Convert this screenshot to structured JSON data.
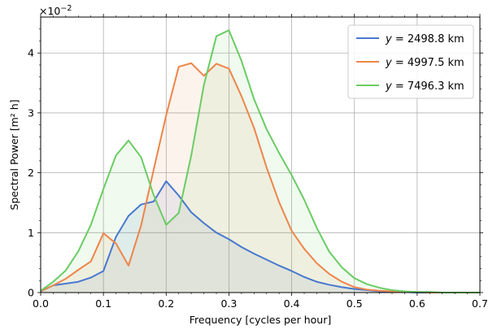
{
  "chart_data": {
    "type": "line",
    "fill_under": true,
    "x_unit_scale_label": "×10⁻²",
    "xlabel": "Frequency [cycles per hour]",
    "ylabel": "Spectral Power [m² h]",
    "xlim": [
      0,
      0.7
    ],
    "ylim": [
      0,
      4.6
    ],
    "y_multiplier_label": "×10",
    "y_multiplier_exp": "−2",
    "x_ticks": [
      0,
      0.1,
      0.2,
      0.3,
      0.4,
      0.5,
      0.6,
      0.7
    ],
    "x_tick_labels": [
      "0.0",
      "0.1",
      "0.2",
      "0.3",
      "0.4",
      "0.5",
      "0.6",
      "0.7"
    ],
    "y_ticks": [
      0,
      1,
      2,
      3,
      4
    ],
    "y_tick_labels": [
      "0",
      "1",
      "2",
      "3",
      "4"
    ],
    "grid": true,
    "legend_position": "top-right",
    "x": [
      0,
      0.02,
      0.04,
      0.06,
      0.08,
      0.1,
      0.12,
      0.14,
      0.16,
      0.18,
      0.2,
      0.22,
      0.24,
      0.26,
      0.28,
      0.3,
      0.32,
      0.34,
      0.36,
      0.38,
      0.4,
      0.42,
      0.44,
      0.46,
      0.48,
      0.5,
      0.52,
      0.54,
      0.56,
      0.58,
      0.6,
      0.62,
      0.64,
      0.66,
      0.68,
      0.7
    ],
    "series": [
      {
        "name": "y = 2498.8 km",
        "legend_var": "y",
        "legend_eq": " = 2498.8 km",
        "color": "#4878d0",
        "values": [
          0.02,
          0.12,
          0.15,
          0.18,
          0.25,
          0.36,
          0.93,
          1.28,
          1.47,
          1.52,
          1.86,
          1.62,
          1.34,
          1.16,
          1.0,
          0.89,
          0.76,
          0.65,
          0.55,
          0.45,
          0.36,
          0.26,
          0.18,
          0.13,
          0.09,
          0.06,
          0.04,
          0.02,
          0.01,
          0.01,
          0.0,
          0.0,
          0.0,
          0.0,
          0.0,
          0.0
        ]
      },
      {
        "name": "y = 4997.5 km",
        "legend_var": "y",
        "legend_eq": " = 4997.5 km",
        "color": "#ee854a",
        "values": [
          0.02,
          0.12,
          0.23,
          0.38,
          0.52,
          0.99,
          0.82,
          0.45,
          1.12,
          2.05,
          2.96,
          3.77,
          3.83,
          3.62,
          3.82,
          3.74,
          3.28,
          2.75,
          2.09,
          1.51,
          1.03,
          0.73,
          0.49,
          0.31,
          0.18,
          0.09,
          0.05,
          0.03,
          0.02,
          0.01,
          0.01,
          0.0,
          0.0,
          0.0,
          0.0,
          0.0
        ]
      },
      {
        "name": "y = 7496.3 km",
        "legend_var": "y",
        "legend_eq": " = 7496.3 km",
        "color": "#6acc64",
        "values": [
          0.03,
          0.18,
          0.37,
          0.69,
          1.13,
          1.73,
          2.29,
          2.54,
          2.26,
          1.63,
          1.13,
          1.33,
          2.29,
          3.46,
          4.28,
          4.38,
          3.87,
          3.23,
          2.73,
          2.33,
          1.96,
          1.55,
          1.08,
          0.68,
          0.42,
          0.24,
          0.14,
          0.08,
          0.04,
          0.02,
          0.01,
          0.01,
          0.0,
          0.0,
          0.0,
          0.0
        ]
      }
    ]
  }
}
